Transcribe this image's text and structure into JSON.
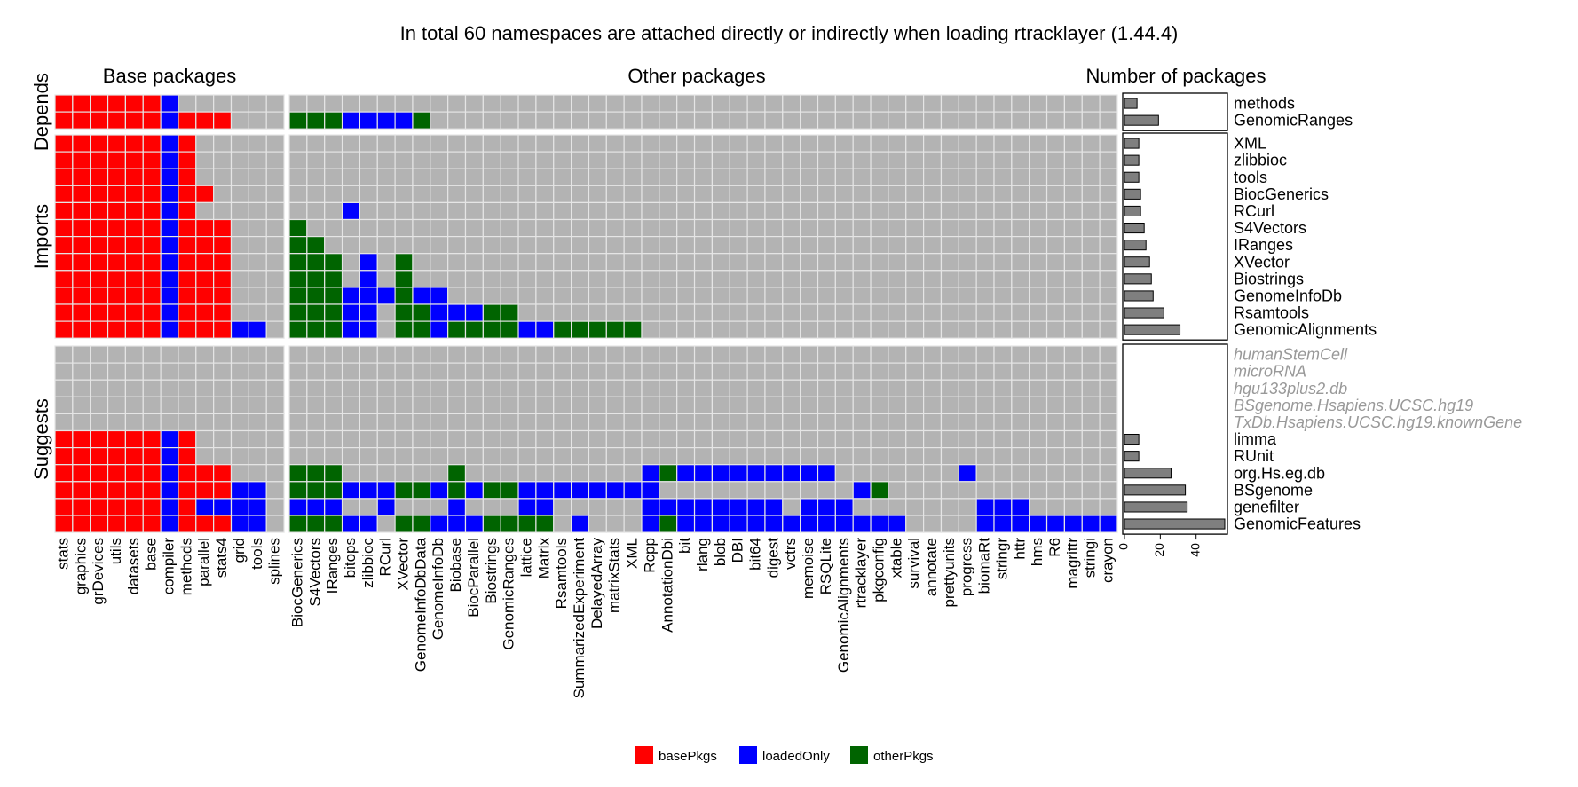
{
  "chart_data": {
    "type": "heatmap",
    "title": "In total 60 namespaces are attached directly or indirectly when loading rtracklayer (1.44.4)",
    "panels": {
      "base": "Base packages",
      "other": "Other packages",
      "count": "Number of packages"
    },
    "row_groups": [
      "Depends",
      "Imports",
      "Suggests"
    ],
    "base_columns": [
      "stats",
      "graphics",
      "grDevices",
      "utils",
      "datasets",
      "base",
      "compiler",
      "methods",
      "parallel",
      "stats4",
      "grid",
      "tools",
      "splines"
    ],
    "other_columns": [
      "BiocGenerics",
      "S4Vectors",
      "IRanges",
      "bitops",
      "zlibbioc",
      "RCurl",
      "XVector",
      "GenomeInfoDbData",
      "GenomeInfoDb",
      "Biobase",
      "BiocParallel",
      "Biostrings",
      "GenomicRanges",
      "lattice",
      "Matrix",
      "Rsamtools",
      "SummarizedExperiment",
      "DelayedArray",
      "matrixStats",
      "XML",
      "Rcpp",
      "AnnotationDbi",
      "bit",
      "rlang",
      "blob",
      "DBI",
      "bit64",
      "digest",
      "vctrs",
      "memoise",
      "RSQLite",
      "GenomicAlignments",
      "rtracklayer",
      "pkgconfig",
      "xtable",
      "survival",
      "annotate",
      "prettyunits",
      "progress",
      "biomaRt",
      "stringr",
      "httr",
      "hms",
      "R6",
      "magrittr",
      "stringi",
      "crayon"
    ],
    "rows": [
      {
        "group": "Depends",
        "name": "methods",
        "grey": false,
        "base": "bbbbbbl......",
        "other": "..............................................."
      },
      {
        "group": "Depends",
        "name": "GenomicRanges",
        "grey": false,
        "base": "bbbbbblbbb...",
        "other": "ooollllo......................................."
      },
      {
        "group": "Imports",
        "name": "XML",
        "grey": false,
        "base": "bbbbbblb.....",
        "other": "..............................................."
      },
      {
        "group": "Imports",
        "name": "zlibbioc",
        "grey": false,
        "base": "bbbbbblb.....",
        "other": "..............................................."
      },
      {
        "group": "Imports",
        "name": "tools",
        "grey": false,
        "base": "bbbbbblb.....",
        "other": "..............................................."
      },
      {
        "group": "Imports",
        "name": "BiocGenerics",
        "grey": false,
        "base": "bbbbbblbb....",
        "other": "..............................................."
      },
      {
        "group": "Imports",
        "name": "RCurl",
        "grey": false,
        "base": "bbbbbblb.....",
        "other": "...l..........................................."
      },
      {
        "group": "Imports",
        "name": "S4Vectors",
        "grey": false,
        "base": "bbbbbblbbb...",
        "other": "o.............................................."
      },
      {
        "group": "Imports",
        "name": "IRanges",
        "grey": false,
        "base": "bbbbbblbbb...",
        "other": "oo............................................."
      },
      {
        "group": "Imports",
        "name": "XVector",
        "grey": false,
        "base": "bbbbbblbbb...",
        "other": "ooo.l.o........................................"
      },
      {
        "group": "Imports",
        "name": "Biostrings",
        "grey": false,
        "base": "bbbbbblbbb...",
        "other": "ooo.l.o........................................"
      },
      {
        "group": "Imports",
        "name": "GenomeInfoDb",
        "grey": false,
        "base": "bbbbbblbbb...",
        "other": "ooollloll......................................"
      },
      {
        "group": "Imports",
        "name": "Rsamtools",
        "grey": false,
        "base": "bbbbbblbbb...",
        "other": "oooll.oollloo.................................."
      },
      {
        "group": "Imports",
        "name": "GenomicAlignments",
        "grey": false,
        "base": "bbbbbblbbbll.",
        "other": "oooll.ooloooollooooo..........................."
      },
      {
        "group": "Suggests",
        "name": "humanStemCell",
        "grey": true,
        "base": ".............",
        "other": "..............................................."
      },
      {
        "group": "Suggests",
        "name": "microRNA",
        "grey": true,
        "base": ".............",
        "other": "..............................................."
      },
      {
        "group": "Suggests",
        "name": "hgu133plus2.db",
        "grey": true,
        "base": ".............",
        "other": "..............................................."
      },
      {
        "group": "Suggests",
        "name": "BSgenome.Hsapiens.UCSC.hg19",
        "grey": true,
        "base": ".............",
        "other": "..............................................."
      },
      {
        "group": "Suggests",
        "name": "TxDb.Hsapiens.UCSC.hg19.knownGene",
        "grey": true,
        "base": ".............",
        "other": "..............................................."
      },
      {
        "group": "Suggests",
        "name": "limma",
        "grey": false,
        "base": "bbbbbblb.....",
        "other": "..............................................."
      },
      {
        "group": "Suggests",
        "name": "RUnit",
        "grey": false,
        "base": "bbbbbblb.....",
        "other": "..............................................."
      },
      {
        "group": "Suggests",
        "name": "org.Hs.eg.db",
        "grey": false,
        "base": "bbbbbblbbb...",
        "other": "ooo......o..........lolllllllll.......l........."
      },
      {
        "group": "Suggests",
        "name": "BSgenome",
        "grey": false,
        "base": "bbbbbblbbbll.",
        "other": "ooollloololoollllllll...........lo.............."
      },
      {
        "group": "Suggests",
        "name": "genefilter",
        "grey": false,
        "base": "bbbbbblbllll.",
        "other": "lll..l...l...ll.....llllllll.lll.......lll......."
      },
      {
        "group": "Suggests",
        "name": "GenomicFeatures",
        "grey": false,
        "base": "bbbbbblbbbll.",
        "other": "oooll.oollloooo.l...lolllllllllllll....lllllllllll"
      }
    ],
    "counts": [
      7,
      19,
      8,
      8,
      8,
      9,
      9,
      11,
      12,
      14,
      15,
      16,
      22,
      31,
      0,
      0,
      0,
      0,
      0,
      8,
      8,
      26,
      34,
      35,
      56
    ],
    "count_axis": {
      "min": 0,
      "max": 57,
      "ticks": [
        0,
        20,
        40
      ]
    },
    "fill_colors": {
      "b": "#ff0000",
      "l": "#0000ff",
      "o": "#006400",
      ".": "#b3b3b3"
    },
    "legend": [
      {
        "key": "b",
        "label": "basePkgs"
      },
      {
        "key": "l",
        "label": "loadedOnly"
      },
      {
        "key": "o",
        "label": "otherPkgs"
      }
    ]
  }
}
